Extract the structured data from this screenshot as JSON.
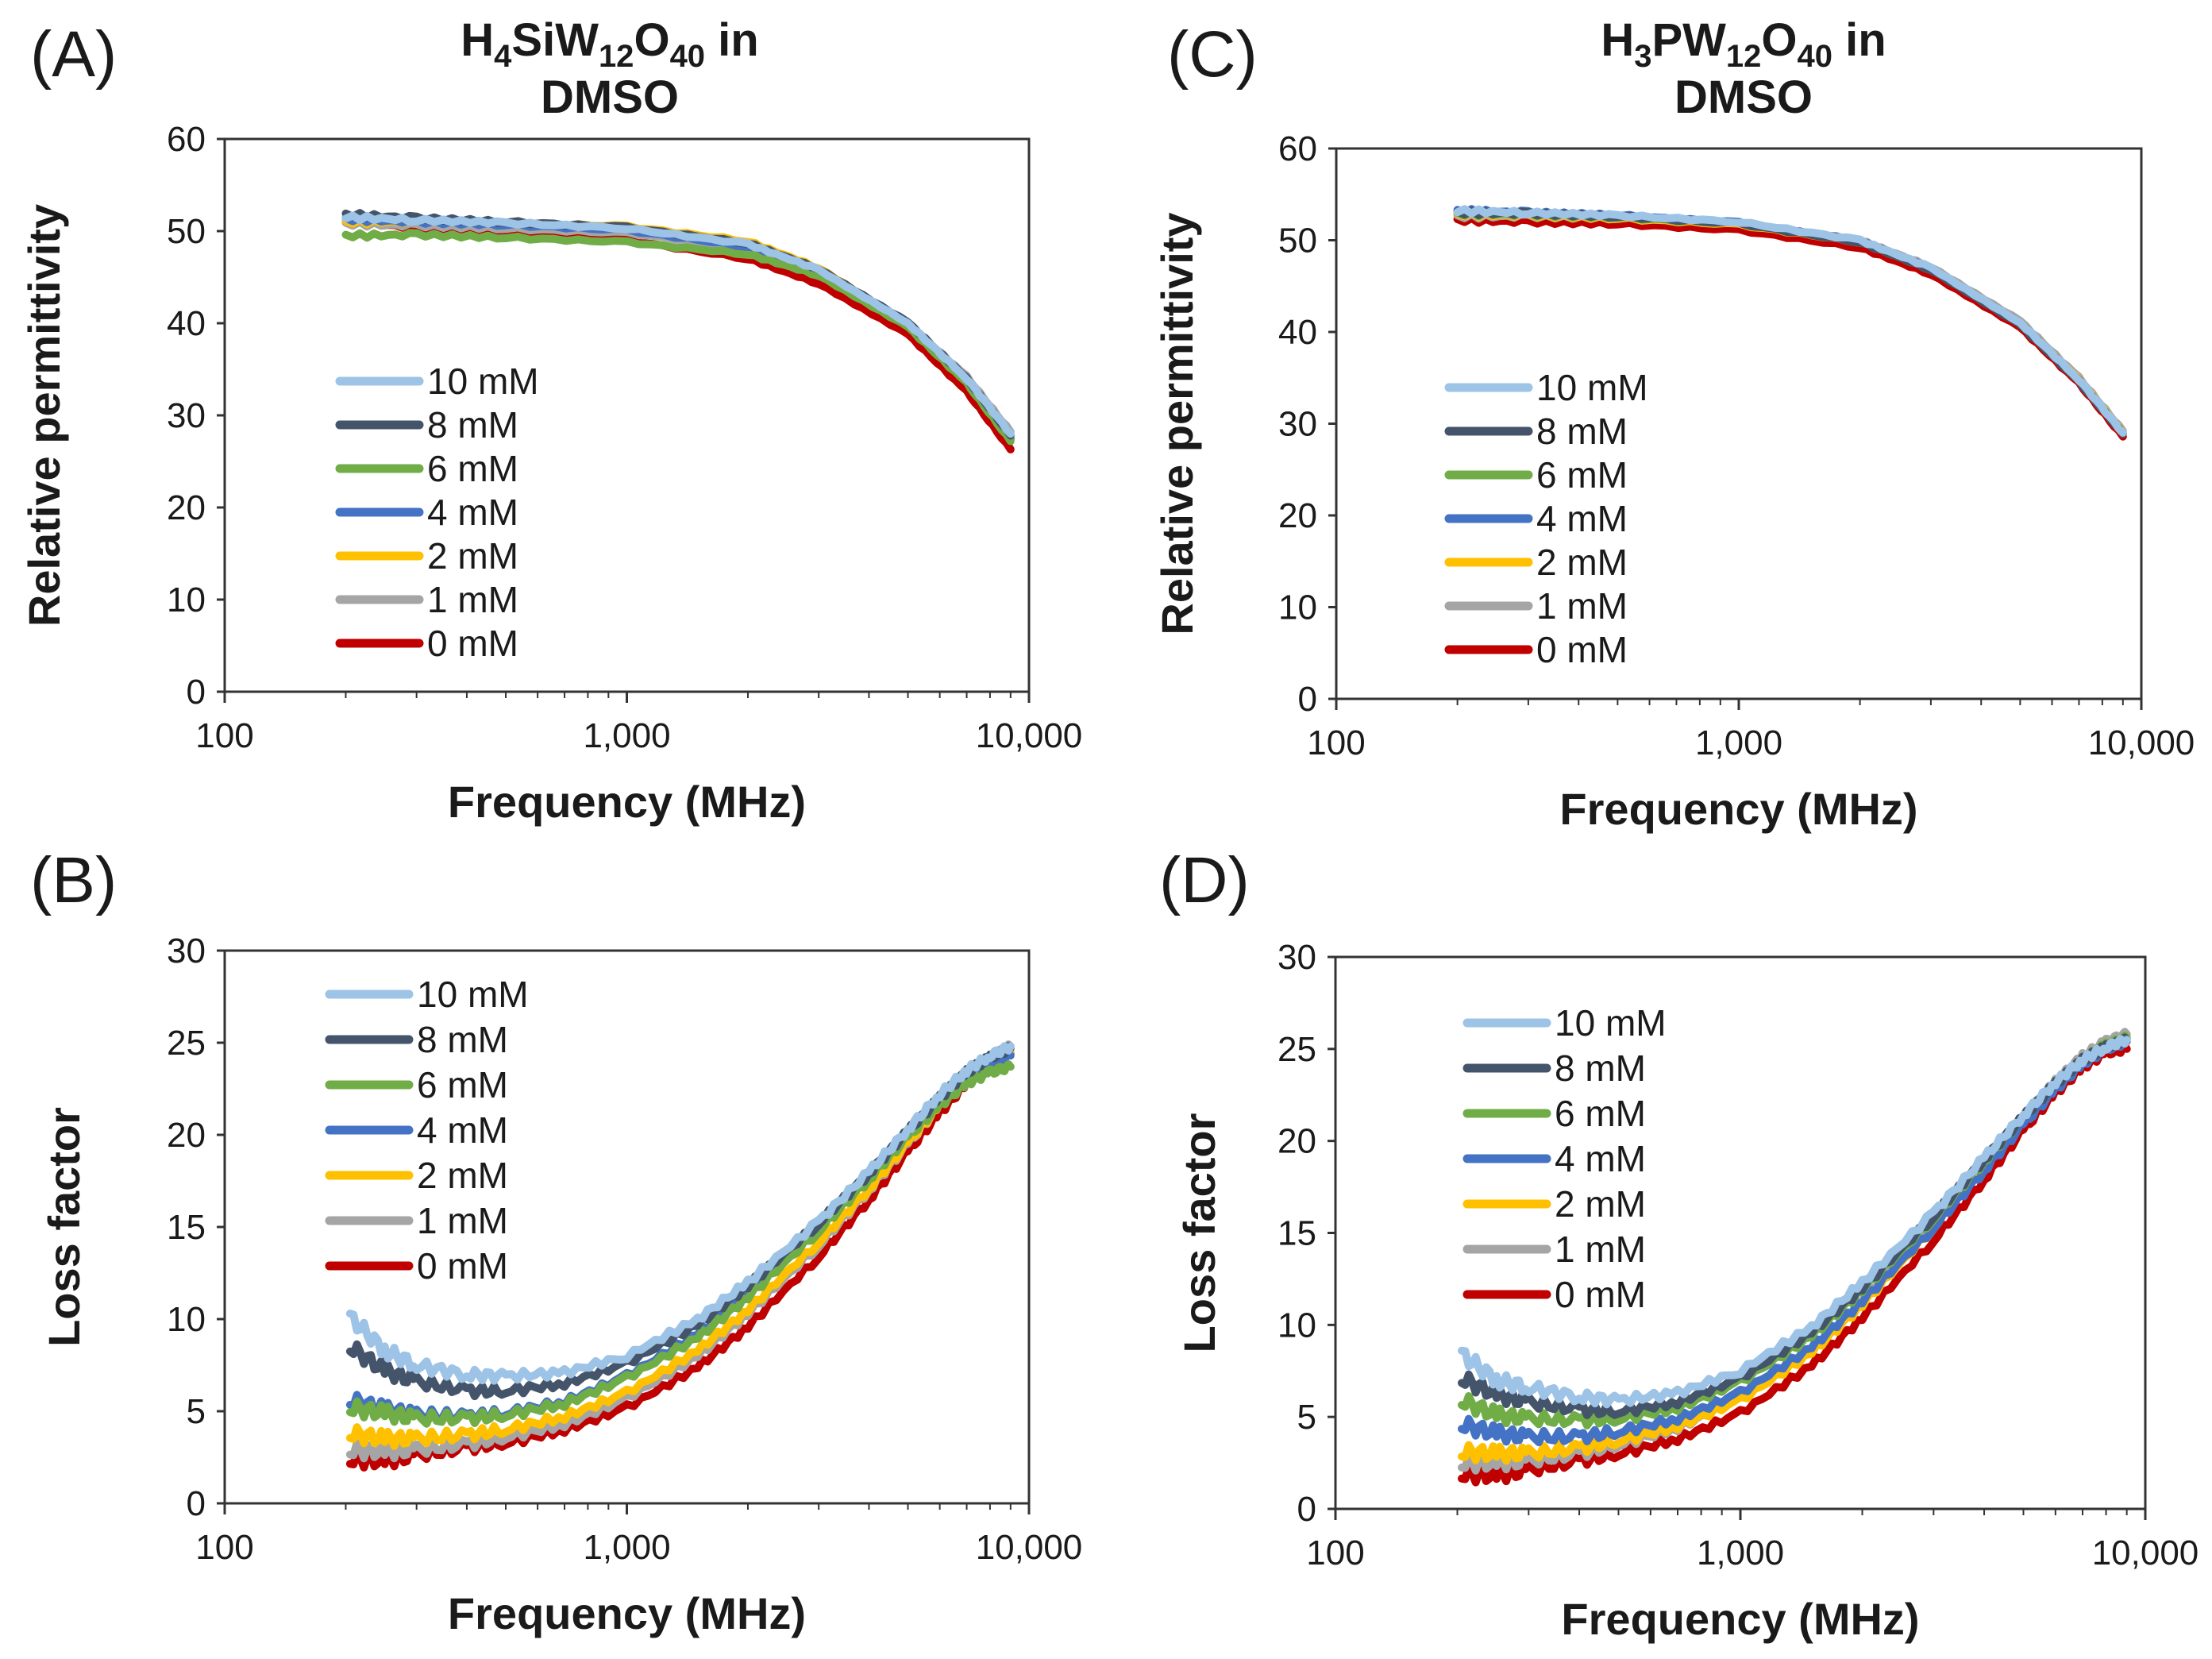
{
  "figure": {
    "panels": [
      {
        "id": "A",
        "label": "(A)",
        "title_line1": "H4SiW12O40  in",
        "title_line2": "DMSO"
      },
      {
        "id": "B",
        "label": "(B)"
      },
      {
        "id": "C",
        "label": "(C)",
        "title_line1": "H3PW12O40  in",
        "title_line2": "DMSO"
      },
      {
        "id": "D",
        "label": "(D)"
      }
    ]
  },
  "legend_order": [
    "10 mM",
    "8 mM",
    "6 mM",
    "4 mM",
    "2 mM",
    "1 mM",
    "0 mM"
  ],
  "series_colors": {
    "10 mM": "#9dc3e6",
    "8 mM": "#44546a",
    "6 mM": "#70ad47",
    "4 mM": "#4472c4",
    "2 mM": "#ffc000",
    "1 mM": "#a5a5a5",
    "0 mM": "#c00000"
  },
  "chart_data": [
    {
      "id": "A",
      "type": "line",
      "title": "H4SiW12O40 in DMSO",
      "xlabel": "Frequency (MHz)",
      "ylabel": "Relative permittivity",
      "xscale": "log",
      "xlim": [
        100,
        10000
      ],
      "ylim": [
        0,
        60
      ],
      "xticks": [
        100,
        1000,
        10000
      ],
      "xtick_labels": [
        "100",
        "1,000",
        "10,000"
      ],
      "yticks": [
        0,
        10,
        20,
        30,
        40,
        50,
        60
      ],
      "yticks_labels": [
        "0",
        "10",
        "20",
        "30",
        "40",
        "50",
        "60"
      ],
      "legend_position": "center-left",
      "x": [
        200,
        300,
        500,
        1000,
        2000,
        3000,
        5000,
        7000,
        9000
      ],
      "series": [
        {
          "name": "10 mM",
          "values": [
            51.5,
            51.2,
            50.9,
            50.3,
            48.6,
            45.8,
            40.0,
            34.0,
            28.0
          ]
        },
        {
          "name": "8 mM",
          "values": [
            51.8,
            51.4,
            51.0,
            50.4,
            48.7,
            45.9,
            40.1,
            34.0,
            27.8
          ]
        },
        {
          "name": "6 mM",
          "values": [
            49.5,
            49.6,
            49.3,
            48.8,
            47.5,
            45.2,
            39.6,
            33.5,
            27.2
          ]
        },
        {
          "name": "4 mM",
          "values": [
            51.3,
            51.0,
            50.7,
            50.1,
            48.3,
            45.5,
            39.7,
            33.6,
            27.4
          ]
        },
        {
          "name": "2 mM",
          "values": [
            51.0,
            51.0,
            50.9,
            50.5,
            48.9,
            46.0,
            40.0,
            33.8,
            27.5
          ]
        },
        {
          "name": "1 mM",
          "values": [
            50.8,
            50.6,
            50.3,
            49.8,
            48.2,
            45.6,
            40.0,
            34.2,
            28.2
          ]
        },
        {
          "name": "0 mM",
          "values": [
            51.0,
            50.4,
            49.9,
            49.0,
            47.0,
            44.3,
            38.8,
            32.6,
            26.3
          ]
        }
      ]
    },
    {
      "id": "B",
      "type": "line",
      "xlabel": "Frequency (MHz)",
      "ylabel": "Loss factor",
      "xscale": "log",
      "xlim": [
        100,
        10000
      ],
      "ylim": [
        0,
        30
      ],
      "xticks": [
        100,
        1000,
        10000
      ],
      "xtick_labels": [
        "100",
        "1,000",
        "10,000"
      ],
      "yticks": [
        0,
        5,
        10,
        15,
        20,
        25,
        30
      ],
      "yticks_labels": [
        "0",
        "5",
        "10",
        "15",
        "20",
        "25",
        "30"
      ],
      "legend_position": "top-left",
      "x": [
        205,
        250,
        300,
        400,
        500,
        700,
        1000,
        1500,
        2000,
        3000,
        4000,
        5000,
        6000,
        7000,
        8000,
        9000
      ],
      "series": [
        {
          "name": "10 mM",
          "values": [
            10.1,
            8.3,
            7.5,
            7.0,
            6.9,
            7.1,
            8.0,
            10.0,
            12.0,
            15.3,
            18.0,
            20.3,
            22.2,
            23.5,
            24.3,
            24.8
          ]
        },
        {
          "name": "8 mM",
          "values": [
            8.5,
            7.2,
            6.6,
            6.1,
            6.1,
            6.5,
            7.6,
            9.7,
            11.8,
            15.2,
            17.9,
            20.2,
            22.0,
            23.4,
            24.2,
            24.7
          ]
        },
        {
          "name": "6 mM",
          "values": [
            5.2,
            4.9,
            4.6,
            4.6,
            4.8,
            5.4,
            6.8,
            9.0,
            11.2,
            14.8,
            17.6,
            19.9,
            21.6,
            22.8,
            23.4,
            23.7
          ]
        },
        {
          "name": "4 mM",
          "values": [
            5.6,
            5.1,
            4.8,
            4.7,
            4.9,
            5.5,
            6.9,
            9.2,
            11.4,
            15.0,
            17.8,
            20.0,
            21.8,
            23.1,
            23.9,
            24.3
          ]
        },
        {
          "name": "2 mM",
          "values": [
            3.8,
            3.5,
            3.5,
            3.7,
            4.0,
            4.7,
            6.0,
            8.3,
            10.5,
            14.2,
            17.1,
            19.6,
            21.6,
            23.1,
            24.0,
            24.5
          ]
        },
        {
          "name": "1 mM",
          "values": [
            2.9,
            2.8,
            2.9,
            3.2,
            3.6,
            4.3,
            5.7,
            8.0,
            10.3,
            14.0,
            17.0,
            19.5,
            21.6,
            23.2,
            24.2,
            24.8
          ]
        },
        {
          "name": "0 mM",
          "values": [
            2.4,
            2.3,
            2.6,
            3.0,
            3.3,
            4.0,
            5.2,
            7.4,
            9.6,
            13.4,
            16.5,
            19.1,
            21.2,
            22.8,
            23.8,
            24.4
          ]
        }
      ]
    },
    {
      "id": "C",
      "type": "line",
      "title": "H3PW12O40 in DMSO",
      "xlabel": "Frequency (MHz)",
      "ylabel": "Relative permittivity",
      "xscale": "log",
      "xlim": [
        100,
        10000
      ],
      "ylim": [
        0,
        60
      ],
      "xticks": [
        100,
        1000,
        10000
      ],
      "xtick_labels": [
        "100",
        "1,000",
        "10,000"
      ],
      "yticks": [
        0,
        10,
        20,
        30,
        40,
        50,
        60
      ],
      "yticks_labels": [
        "0",
        "10",
        "20",
        "30",
        "40",
        "50",
        "60"
      ],
      "legend_position": "center-left",
      "x": [
        200,
        300,
        500,
        1000,
        2000,
        3000,
        5000,
        7000,
        9000
      ],
      "series": [
        {
          "name": "10 mM",
          "values": [
            53.2,
            53.0,
            52.7,
            52.0,
            50.0,
            47.0,
            41.0,
            34.8,
            29.0
          ]
        },
        {
          "name": "8 mM",
          "values": [
            53.0,
            52.9,
            52.6,
            51.8,
            49.8,
            46.8,
            40.8,
            34.6,
            28.9
          ]
        },
        {
          "name": "6 mM",
          "values": [
            52.9,
            52.8,
            52.5,
            51.8,
            49.8,
            46.8,
            40.8,
            34.6,
            28.9
          ]
        },
        {
          "name": "4 mM",
          "values": [
            53.2,
            53.0,
            52.7,
            51.9,
            49.9,
            46.9,
            40.9,
            34.7,
            28.9
          ]
        },
        {
          "name": "2 mM",
          "values": [
            52.8,
            52.7,
            52.4,
            51.7,
            49.8,
            46.8,
            40.9,
            34.8,
            29.0
          ]
        },
        {
          "name": "1 mM",
          "values": [
            52.6,
            52.6,
            52.4,
            51.8,
            50.0,
            47.1,
            41.2,
            35.0,
            29.2
          ]
        },
        {
          "name": "0 mM",
          "values": [
            52.2,
            52.0,
            51.8,
            51.1,
            49.2,
            46.3,
            40.5,
            34.4,
            28.6
          ]
        }
      ]
    },
    {
      "id": "D",
      "type": "line",
      "xlabel": "Frequency (MHz)",
      "ylabel": "Loss factor",
      "xscale": "log",
      "xlim": [
        100,
        10000
      ],
      "ylim": [
        0,
        30
      ],
      "xticks": [
        100,
        1000,
        10000
      ],
      "xtick_labels": [
        "100",
        "1,000",
        "10,000"
      ],
      "yticks": [
        0,
        5,
        10,
        15,
        20,
        25,
        30
      ],
      "yticks_labels": [
        "0",
        "5",
        "10",
        "15",
        "20",
        "25",
        "30"
      ],
      "legend_position": "top-left",
      "x": [
        205,
        250,
        300,
        400,
        500,
        700,
        1000,
        1500,
        2000,
        3000,
        4000,
        5000,
        6000,
        7000,
        8000,
        9000
      ],
      "series": [
        {
          "name": "10 mM",
          "values": [
            8.4,
            7.0,
            6.6,
            6.1,
            5.9,
            6.3,
            7.5,
            9.9,
            12.3,
            16.1,
            19.1,
            21.4,
            23.2,
            24.4,
            25.1,
            25.5
          ]
        },
        {
          "name": "8 mM",
          "values": [
            7.1,
            6.2,
            5.8,
            5.4,
            5.3,
            5.8,
            7.1,
            9.6,
            12.0,
            15.9,
            19.0,
            21.3,
            23.1,
            24.4,
            25.1,
            25.5
          ]
        },
        {
          "name": "6 mM",
          "values": [
            5.9,
            5.1,
            4.9,
            4.8,
            4.9,
            5.5,
            6.9,
            9.4,
            11.9,
            15.8,
            18.9,
            21.3,
            23.1,
            24.4,
            25.2,
            25.6
          ]
        },
        {
          "name": "4 mM",
          "values": [
            4.6,
            4.1,
            3.9,
            3.9,
            4.2,
            4.9,
            6.3,
            8.8,
            11.3,
            15.3,
            18.4,
            20.9,
            22.8,
            24.2,
            25.0,
            25.4
          ]
        },
        {
          "name": "2 mM",
          "values": [
            3.1,
            3.0,
            3.0,
            3.3,
            3.7,
            4.5,
            5.9,
            8.5,
            11.1,
            15.3,
            18.5,
            21.0,
            23.0,
            24.4,
            25.2,
            25.6
          ]
        },
        {
          "name": "1 mM",
          "values": [
            2.5,
            2.5,
            2.6,
            3.0,
            3.5,
            4.4,
            6.0,
            8.7,
            11.4,
            15.6,
            18.8,
            21.3,
            23.2,
            24.6,
            25.4,
            25.8
          ]
        },
        {
          "name": "0 mM",
          "values": [
            1.9,
            1.8,
            2.1,
            2.6,
            3.0,
            3.8,
            5.2,
            7.8,
            10.4,
            14.6,
            17.9,
            20.6,
            22.6,
            24.0,
            24.8,
            25.0
          ]
        }
      ]
    }
  ]
}
